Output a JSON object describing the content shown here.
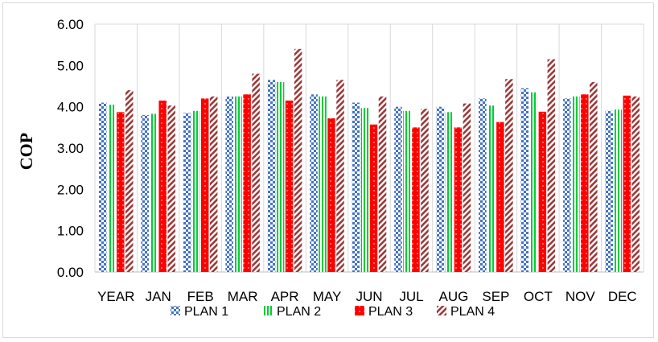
{
  "chart_data": {
    "type": "bar",
    "title": "",
    "xlabel": "",
    "ylabel": "COP",
    "ylim": [
      0,
      6
    ],
    "yticks": [
      "0.00",
      "1.00",
      "2.00",
      "3.00",
      "4.00",
      "5.00",
      "6.00"
    ],
    "grid": "vertical",
    "legend_position": "bottom",
    "categories": [
      "YEAR",
      "JAN",
      "FEB",
      "MAR",
      "APR",
      "MAY",
      "JUN",
      "JUL",
      "AUG",
      "SEP",
      "OCT",
      "NOV",
      "DEC"
    ],
    "series": [
      {
        "name": "PLAN 1",
        "color": "#4472c4",
        "pattern": "checker",
        "values": [
          4.1,
          3.8,
          3.85,
          4.25,
          4.65,
          4.3,
          4.1,
          4.0,
          4.0,
          4.2,
          4.45,
          4.2,
          3.9
        ]
      },
      {
        "name": "PLAN 2",
        "color": "#00cc33",
        "pattern": "vertical-stripes",
        "values": [
          4.05,
          3.83,
          3.9,
          4.25,
          4.6,
          4.25,
          3.97,
          3.9,
          3.87,
          4.03,
          4.35,
          4.25,
          3.93
        ]
      },
      {
        "name": "PLAN 3",
        "color": "#ff0000",
        "pattern": "dotted",
        "values": [
          3.87,
          4.15,
          4.2,
          4.3,
          4.15,
          3.72,
          3.57,
          3.5,
          3.5,
          3.63,
          3.88,
          4.3,
          4.27
        ]
      },
      {
        "name": "PLAN 4",
        "color": "#9b3b3b",
        "pattern": "diagonal-stripes",
        "values": [
          4.4,
          4.03,
          4.25,
          4.8,
          5.4,
          4.65,
          4.25,
          3.95,
          4.08,
          4.67,
          5.15,
          4.6,
          4.25
        ]
      }
    ]
  }
}
